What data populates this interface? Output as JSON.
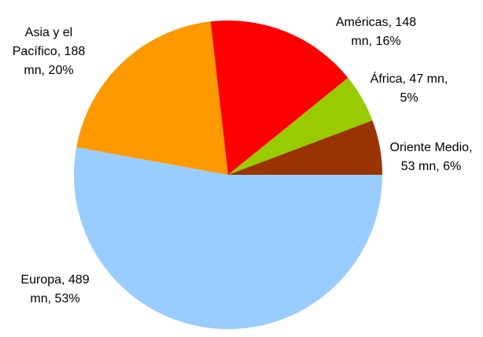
{
  "chart_data": {
    "type": "pie",
    "title": "",
    "slices": [
      {
        "name": "Europa",
        "value": 489,
        "percent": 53,
        "color": "#99CCFF",
        "label_lines": [
          "Europa, 489",
          "mn, 53%"
        ]
      },
      {
        "name": "Asia y el Pacífico",
        "value": 188,
        "percent": 20,
        "color": "#FF9900",
        "label_lines": [
          "Asia y el",
          "Pacífico, 188",
          "mn, 20%"
        ]
      },
      {
        "name": "Américas",
        "value": 148,
        "percent": 16,
        "color": "#FF0000",
        "label_lines": [
          "Américas, 148",
          "mn, 16%"
        ]
      },
      {
        "name": "África",
        "value": 47,
        "percent": 5,
        "color": "#99CC00",
        "label_lines": [
          "África, 47 mn,",
          "5%"
        ]
      },
      {
        "name": "Oriente Medio",
        "value": 53,
        "percent": 6,
        "color": "#993300",
        "label_lines": [
          "Oriente Medio,",
          "53 mn, 6%"
        ]
      }
    ]
  }
}
